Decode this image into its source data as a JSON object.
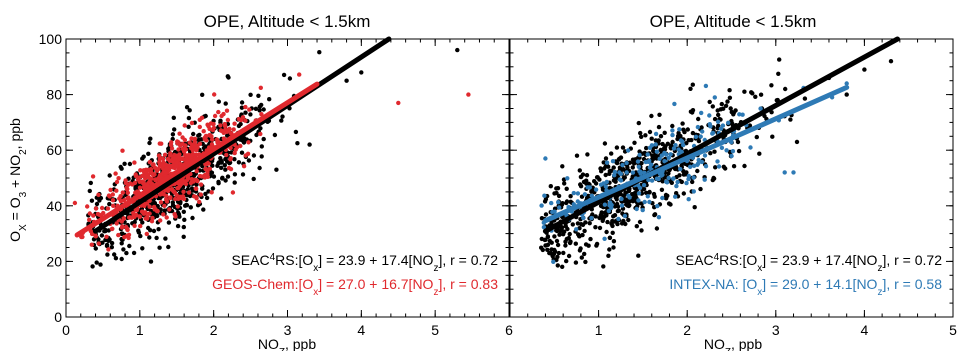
{
  "chart_data": [
    {
      "type": "scatter",
      "title": "OPE, Altitude < 1.5km",
      "ylabel_parts": [
        "O",
        "X",
        " = O",
        "3",
        " + NO",
        "2",
        ", ppb"
      ],
      "xlabel_parts": [
        "NO",
        "Z",
        ", ppb"
      ],
      "xlim": [
        0,
        6
      ],
      "ylim": [
        0,
        100
      ],
      "x_ticks": [
        "0",
        "1",
        "2",
        "3",
        "4",
        "5",
        "6"
      ],
      "y_ticks": [
        "0",
        "20",
        "40",
        "60",
        "80",
        "100"
      ],
      "colors": {
        "obs": "#000000",
        "model": "#e0292e"
      },
      "series": [
        {
          "name": "SEAC4RS",
          "color": "#000000",
          "slope": 17.4,
          "intercept": 23.9,
          "r": 0.72,
          "fit_x_range": [
            0.4,
            4.4
          ],
          "points_summary": {
            "n_approx": 700,
            "x_center": 1.5,
            "x_spread": 0.6,
            "x_range": [
              0.3,
              5.4
            ],
            "y_scatter": 8
          },
          "outliers": [
            [
              5.3,
              96
            ],
            [
              4.0,
              88
            ],
            [
              3.8,
              85
            ],
            [
              3.3,
              62
            ]
          ]
        },
        {
          "name": "GEOS-Chem",
          "color": "#e0292e",
          "slope": 16.7,
          "intercept": 27.0,
          "r": 0.83,
          "fit_x_range": [
            0.15,
            3.4
          ],
          "points_summary": {
            "n_approx": 600,
            "x_center": 1.4,
            "x_spread": 0.5,
            "x_range": [
              0.1,
              3.4
            ],
            "y_scatter": 6
          },
          "outliers": [
            [
              4.5,
              77
            ],
            [
              5.45,
              80
            ],
            [
              0.12,
              41
            ],
            [
              0.35,
              26
            ]
          ]
        }
      ],
      "legend": [
        {
          "color": "#000000",
          "parts": [
            {
              "t": "SEAC",
              "s": 0
            },
            {
              "t": "4",
              "s": 1
            },
            {
              "t": "RS:[O",
              "s": 0
            },
            {
              "t": "x",
              "s": -1
            },
            {
              "t": "] = 23.9 + 17.4[NO",
              "s": 0
            },
            {
              "t": "z",
              "s": -1
            },
            {
              "t": "], r = 0.72",
              "s": 0
            }
          ]
        },
        {
          "color": "#e0292e",
          "parts": [
            {
              "t": "GEOS-Chem:[O",
              "s": 0
            },
            {
              "t": "x",
              "s": -1
            },
            {
              "t": "] = 27.0 + 16.7[NO",
              "s": 0
            },
            {
              "t": "z",
              "s": -1
            },
            {
              "t": "], r = 0.83",
              "s": 0
            }
          ]
        }
      ]
    },
    {
      "type": "scatter",
      "title": "OPE, Altitude < 1.5km",
      "xlabel_parts": [
        "NO",
        "Z",
        ", ppb"
      ],
      "xlim": [
        0,
        5
      ],
      "ylim": [
        0,
        100
      ],
      "x_ticks": [
        "1",
        "2",
        "3",
        "4",
        "5"
      ],
      "colors": {
        "obs": "#000000",
        "model": "#2e7ab5"
      },
      "series": [
        {
          "name": "SEAC4RS",
          "color": "#000000",
          "slope": 17.4,
          "intercept": 23.9,
          "r": 0.72,
          "fit_x_range": [
            0.4,
            4.4
          ],
          "points_summary": {
            "n_approx": 750,
            "x_center": 1.4,
            "x_spread": 0.65,
            "x_range": [
              0.35,
              4.2
            ],
            "y_scatter": 8
          },
          "outliers": [
            [
              4.3,
              92
            ],
            [
              4.0,
              89
            ],
            [
              3.6,
              86
            ],
            [
              3.8,
              80
            ]
          ]
        },
        {
          "name": "INTEX-NA",
          "color": "#2e7ab5",
          "slope": 14.1,
          "intercept": 29.0,
          "r": 0.58,
          "fit_x_range": [
            0.4,
            3.8
          ],
          "points_summary": {
            "n_approx": 220,
            "x_center": 1.6,
            "x_spread": 0.7,
            "x_range": [
              0.35,
              3.9
            ],
            "y_scatter": 6
          },
          "outliers": [
            [
              0.4,
              57
            ],
            [
              3.1,
              52
            ],
            [
              3.2,
              52
            ],
            [
              3.8,
              84
            ]
          ]
        }
      ],
      "legend": [
        {
          "color": "#000000",
          "parts": [
            {
              "t": "SEAC",
              "s": 0
            },
            {
              "t": "4",
              "s": 1
            },
            {
              "t": "RS:[O",
              "s": 0
            },
            {
              "t": "x",
              "s": -1
            },
            {
              "t": "] = 23.9 + 17.4[NO",
              "s": 0
            },
            {
              "t": "z",
              "s": -1
            },
            {
              "t": "], r = 0.72",
              "s": 0
            }
          ]
        },
        {
          "color": "#2e7ab5",
          "parts": [
            {
              "t": "INTEX-NA: [O",
              "s": 0
            },
            {
              "t": "x",
              "s": -1
            },
            {
              "t": "] = 29.0 + 14.1[NO",
              "s": 0
            },
            {
              "t": "z",
              "s": -1
            },
            {
              "t": "], r = 0.58",
              "s": 0
            }
          ]
        }
      ]
    }
  ]
}
